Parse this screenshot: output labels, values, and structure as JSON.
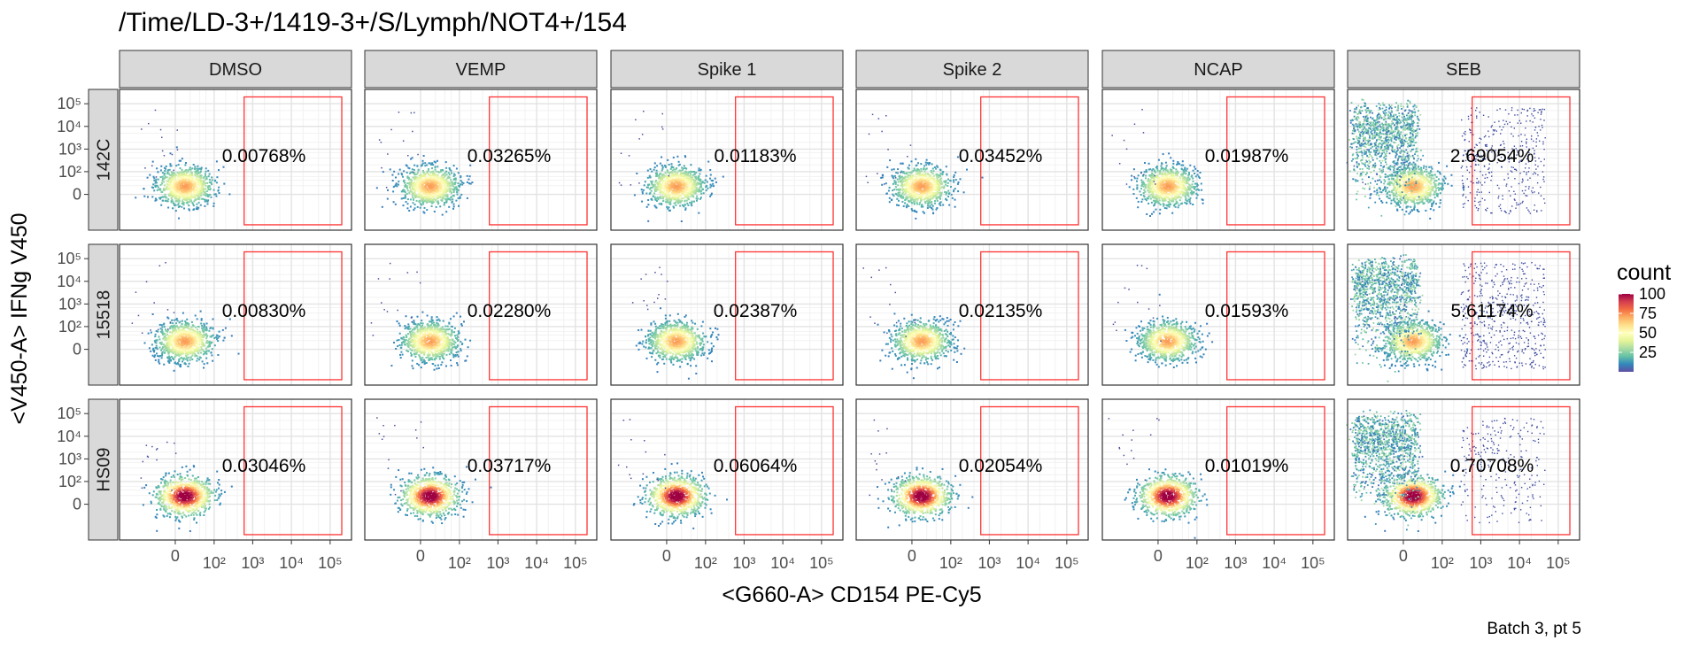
{
  "chart_data": {
    "type": "facet-scatter-density",
    "title": "/Time/LD-3+/1419-3+/S/Lymph/NOT4+/154",
    "xlabel": "<G660-A> CD154 PE-Cy5",
    "ylabel": "<V450-A> IFNg V450",
    "caption": "Batch 3, pt 5",
    "columns": [
      "DMSO",
      "VEMP",
      "Spike 1",
      "Spike 2",
      "NCAP",
      "SEB"
    ],
    "rows": [
      "142C",
      "15518",
      "HS09"
    ],
    "x_ticks": [
      {
        "value": 0,
        "label": "0"
      },
      {
        "value": 100,
        "label": "10²"
      },
      {
        "value": 1000,
        "label": "10³"
      },
      {
        "value": 10000,
        "label": "10⁴"
      },
      {
        "value": 100000,
        "label": "10⁵"
      }
    ],
    "y_ticks": [
      {
        "value": 0,
        "label": "0"
      },
      {
        "value": 100,
        "label": "10²"
      },
      {
        "value": 1000,
        "label": "10³"
      },
      {
        "value": 10000,
        "label": "10⁴"
      },
      {
        "value": 100000,
        "label": "10⁵"
      }
    ],
    "gate": {
      "x_min": 600,
      "x_max": 200000,
      "y_min": -200,
      "y_max": 200000,
      "color": "#ff3333"
    },
    "gate_percent": [
      [
        "0.00768%",
        "0.03265%",
        "0.01183%",
        "0.03452%",
        "0.01987%",
        "2.69054%"
      ],
      [
        "0.00830%",
        "0.02280%",
        "0.02387%",
        "0.02135%",
        "0.01593%",
        "5.61174%"
      ],
      [
        "0.03046%",
        "0.03717%",
        "0.06064%",
        "0.02054%",
        "0.01019%",
        "0.70708%"
      ]
    ],
    "legend": {
      "title": "count",
      "ticks": [
        {
          "value": 25,
          "label": "25"
        },
        {
          "value": 50,
          "label": "50"
        },
        {
          "value": 75,
          "label": "75"
        },
        {
          "value": 100,
          "label": "100"
        }
      ],
      "range": [
        0,
        100
      ],
      "colors": [
        "#5e4fa2",
        "#3288bd",
        "#66c2a5",
        "#abdda4",
        "#e6f598",
        "#ffffbf",
        "#fee08b",
        "#fdae61",
        "#f46d43",
        "#d53e4f",
        "#9e0142"
      ]
    }
  }
}
